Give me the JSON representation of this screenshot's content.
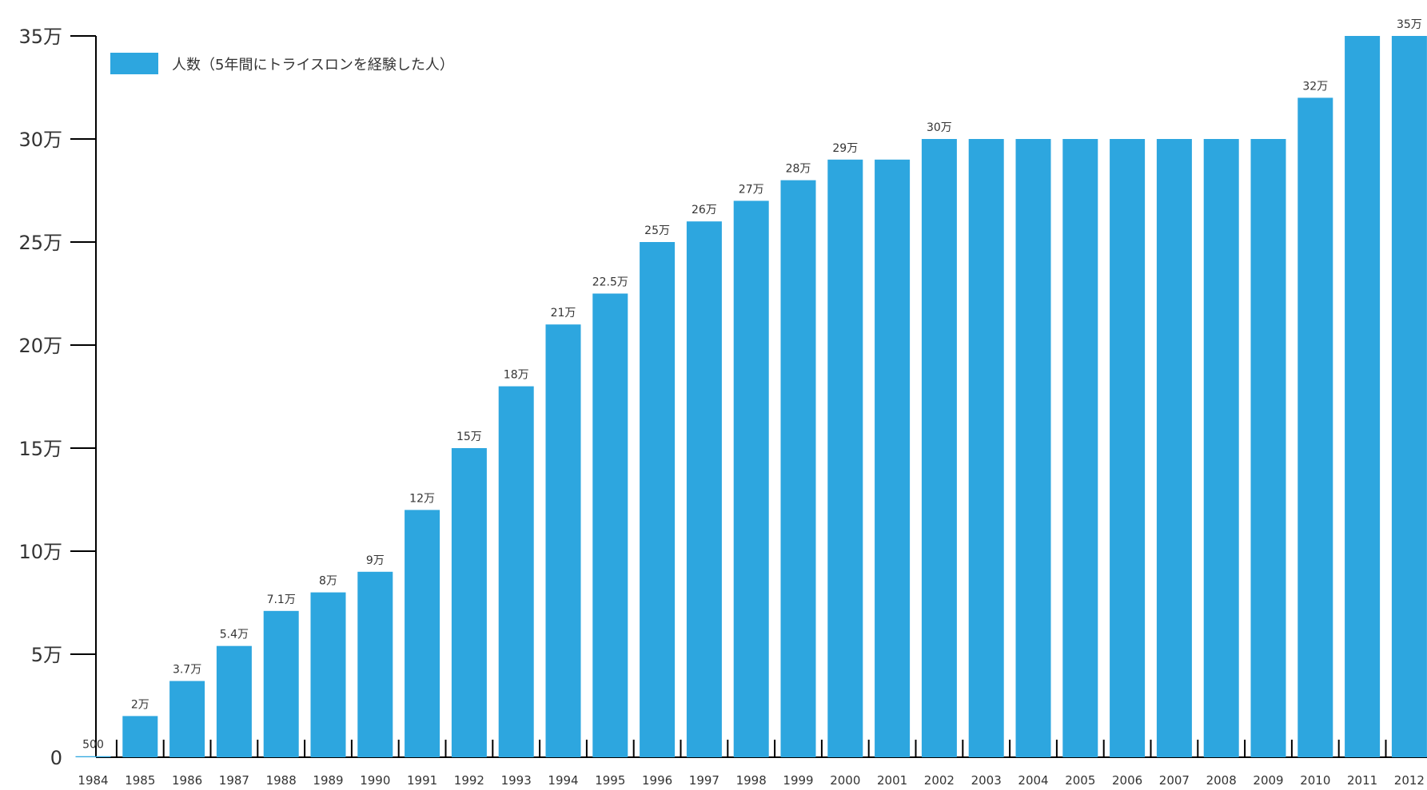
{
  "chart_data": {
    "type": "bar",
    "categories": [
      "1984",
      "1985",
      "1986",
      "1987",
      "1988",
      "1989",
      "1990",
      "1991",
      "1992",
      "1993",
      "1994",
      "1995",
      "1996",
      "1997",
      "1998",
      "1999",
      "2000",
      "2001",
      "2002",
      "2003",
      "2004",
      "2005",
      "2006",
      "2007",
      "2008",
      "2009",
      "2010",
      "2011",
      "2012"
    ],
    "series": [
      {
        "name": "人数（5年間にトライスロンを経験した人）",
        "values": [
          500,
          20000,
          37000,
          54000,
          71000,
          80000,
          90000,
          120000,
          150000,
          180000,
          210000,
          225000,
          250000,
          260000,
          270000,
          280000,
          290000,
          290000,
          300000,
          300000,
          300000,
          300000,
          300000,
          300000,
          300000,
          300000,
          320000,
          350000,
          350000
        ],
        "labels": [
          "500",
          "2万",
          "3.7万",
          "5.4万",
          "7.1万",
          "8万",
          "9万",
          "12万",
          "15万",
          "18万",
          "21万",
          "22.5万",
          "25万",
          "26万",
          "27万",
          "28万",
          "29万",
          "",
          "30万",
          "",
          "",
          "",
          "",
          "",
          "",
          "",
          "32万",
          "",
          "35万"
        ]
      }
    ],
    "y_ticks": [
      {
        "value": 0,
        "label": "0"
      },
      {
        "value": 50000,
        "label": "5万"
      },
      {
        "value": 100000,
        "label": "10万"
      },
      {
        "value": 150000,
        "label": "15万"
      },
      {
        "value": 200000,
        "label": "20万"
      },
      {
        "value": 250000,
        "label": "25万"
      },
      {
        "value": 300000,
        "label": "30万"
      },
      {
        "value": 350000,
        "label": "35万"
      }
    ],
    "ylim": [
      0,
      350000
    ],
    "title": "",
    "xlabel": "",
    "ylabel": "",
    "grid": false,
    "legend_position": "top-left",
    "bar_color": "#2DA6DF",
    "axis_color": "#000000"
  }
}
